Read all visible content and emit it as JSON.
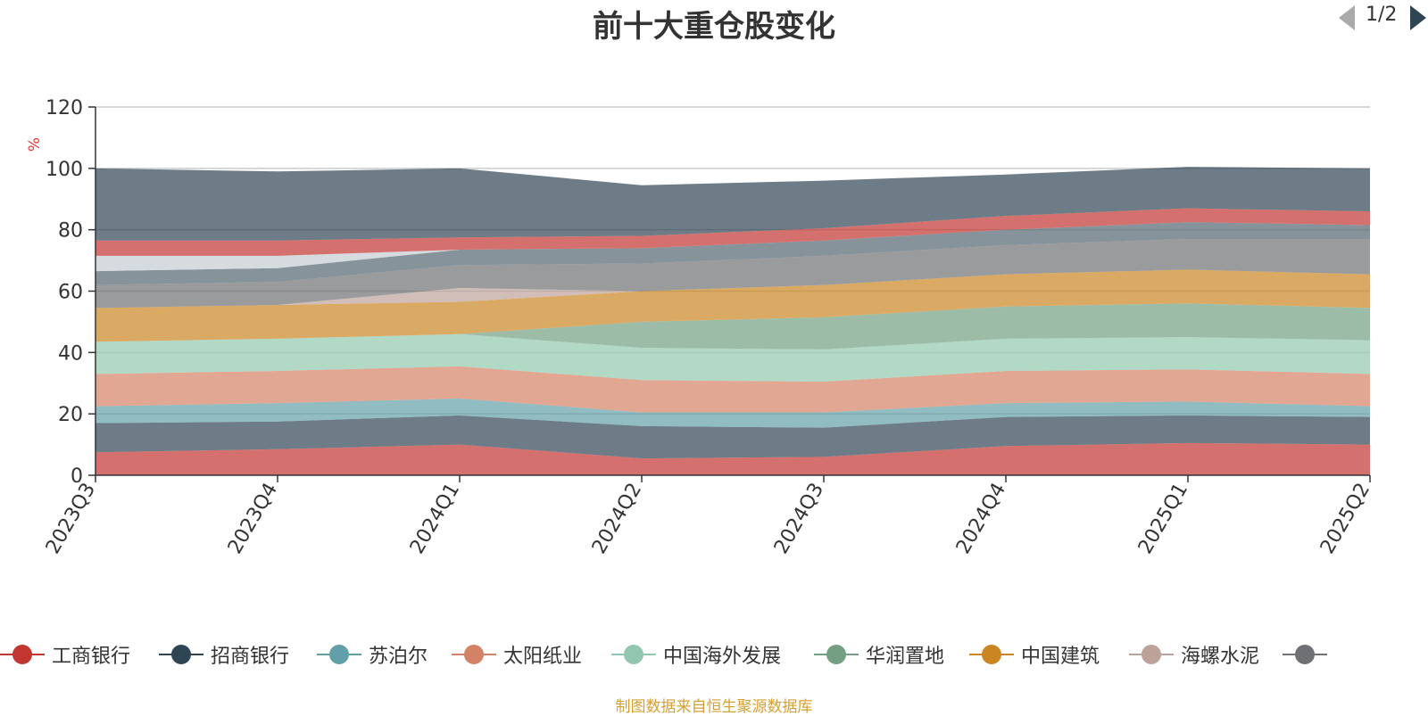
{
  "chart_data": {
    "type": "area",
    "stacked": true,
    "title": "前十大重仓股变化",
    "ylabel": "%",
    "ylim": [
      0,
      120
    ],
    "yticks": [
      0,
      20,
      40,
      60,
      80,
      100,
      120
    ],
    "categories": [
      "2023Q3",
      "2023Q4",
      "2024Q1",
      "2024Q2",
      "2024Q3",
      "2024Q4",
      "2025Q1",
      "2025Q2"
    ],
    "grid": true,
    "series": [
      {
        "name": "工商银行",
        "color": "#c23531",
        "values": [
          7.5,
          8.5,
          10,
          5.5,
          6,
          9.5,
          10.5,
          10
        ]
      },
      {
        "name": "招商银行",
        "color": "#2f4554",
        "values": [
          9.5,
          9,
          9.5,
          10.5,
          9.5,
          9.5,
          9,
          9
        ]
      },
      {
        "name": "苏泊尔",
        "color": "#61a0a8",
        "values": [
          5.5,
          6,
          5.5,
          4.5,
          5,
          4.5,
          4.5,
          3.5
        ]
      },
      {
        "name": "太阳纸业",
        "color": "#d48265",
        "values": [
          10.5,
          10.5,
          10.5,
          10.5,
          10,
          10.5,
          10.5,
          10.5
        ]
      },
      {
        "name": "中国海外发展",
        "color": "#91c7ae",
        "values": [
          10.5,
          10.5,
          10.5,
          10.5,
          10.5,
          10.5,
          10.5,
          11
        ]
      },
      {
        "name": "华润置地",
        "color": "#749f83",
        "values": [
          0,
          0,
          0,
          8.5,
          10.5,
          10.5,
          11,
          10.5
        ]
      },
      {
        "name": "中国建筑",
        "color": "#ca8622",
        "values": [
          11,
          11,
          10.5,
          10,
          10.5,
          10.5,
          11,
          11
        ]
      },
      {
        "name": "海螺水泥",
        "color": "#bda29a",
        "values": [
          0,
          0,
          4.5,
          0,
          0,
          0,
          0,
          0
        ]
      },
      {
        "name": "",
        "color": "#6e7074",
        "values": [
          7.5,
          7.5,
          7.5,
          9,
          9.5,
          9.5,
          10,
          11.5
        ]
      },
      {
        "name": "",
        "color": "#546570",
        "values": [
          4.5,
          4.5,
          5,
          5,
          5,
          5,
          5.5,
          4.5
        ]
      },
      {
        "name": "",
        "color": "#c4ccd3",
        "values": [
          5,
          4,
          0,
          0,
          0,
          0,
          0,
          0
        ]
      },
      {
        "name": "",
        "color": "#c23531",
        "values": [
          5,
          5,
          4,
          4,
          4,
          4.5,
          4.5,
          4.5
        ]
      },
      {
        "name": "",
        "color": "#2f4554",
        "values": [
          23.5,
          22.5,
          22.5,
          16.5,
          15.5,
          13.5,
          13.5,
          14
        ]
      }
    ]
  },
  "legend": {
    "items": [
      {
        "label": "工商银行",
        "color": "#c23531"
      },
      {
        "label": "招商银行",
        "color": "#2f4554"
      },
      {
        "label": "苏泊尔",
        "color": "#61a0a8"
      },
      {
        "label": "太阳纸业",
        "color": "#d48265"
      },
      {
        "label": "中国海外发展",
        "color": "#91c7ae"
      },
      {
        "label": "华润置地",
        "color": "#749f83"
      },
      {
        "label": "中国建筑",
        "color": "#ca8622"
      },
      {
        "label": "海螺水泥",
        "color": "#bda29a"
      },
      {
        "label": "",
        "color": "#6e7074"
      }
    ],
    "page": "1/2"
  },
  "source_note": "制图数据来自恒生聚源数据库"
}
